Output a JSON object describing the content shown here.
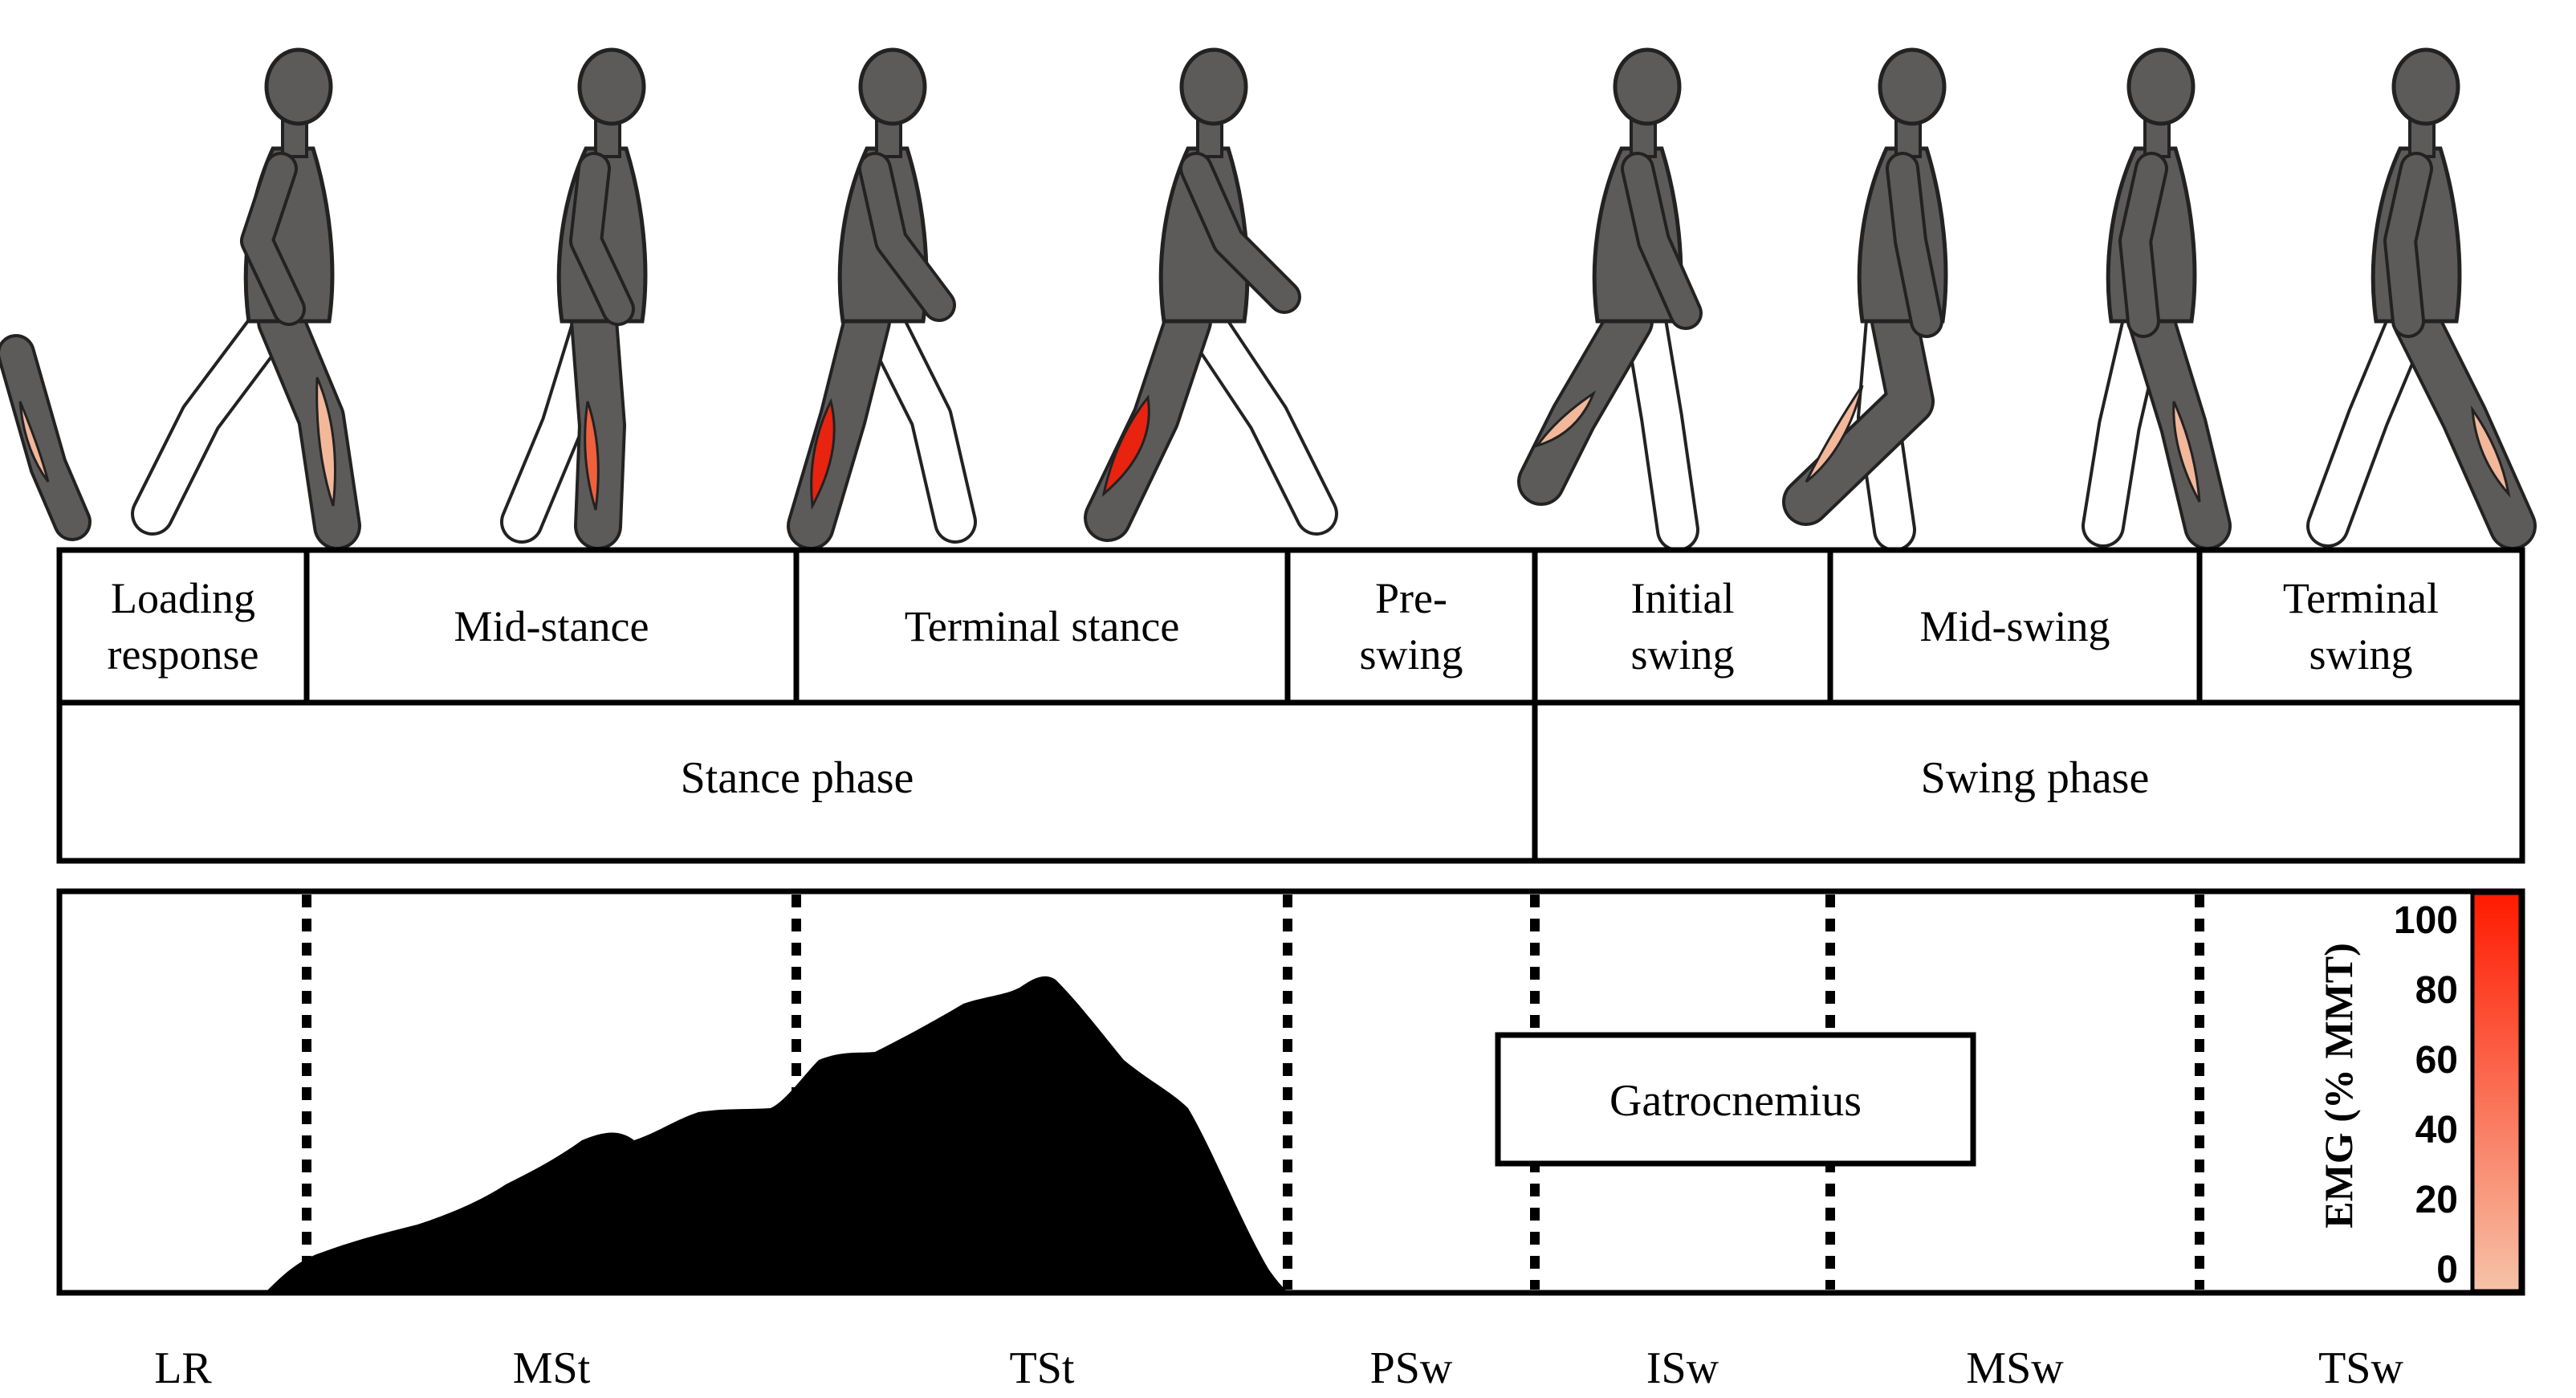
{
  "subphases": [
    {
      "lines": [
        "Loading",
        "response"
      ],
      "abbr": "LR"
    },
    {
      "lines": [
        "Mid-stance"
      ],
      "abbr": "MSt"
    },
    {
      "lines": [
        "Terminal stance"
      ],
      "abbr": "TSt"
    },
    {
      "lines": [
        "Pre-",
        "swing"
      ],
      "abbr": "PSw"
    },
    {
      "lines": [
        "Initial",
        "swing"
      ],
      "abbr": "ISw"
    },
    {
      "lines": [
        "Mid-swing"
      ],
      "abbr": "MSw"
    },
    {
      "lines": [
        "Terminal",
        "swing"
      ],
      "abbr": "TSw"
    }
  ],
  "phases": [
    "Stance phase",
    "Swing phase"
  ],
  "muscle_label": "Gatrocnemius",
  "scale": {
    "title": "EMG (% MMT)",
    "ticks": [
      "100",
      "80",
      "60",
      "40",
      "20",
      "0"
    ],
    "color_low": "#f6c3a8",
    "color_high": "#ff1a00"
  },
  "colors": {
    "figure": "#5d5a5a",
    "muscle_strong": "#e8230f",
    "muscle_mid": "#f0603c",
    "muscle_light": "#f3b79a"
  }
}
